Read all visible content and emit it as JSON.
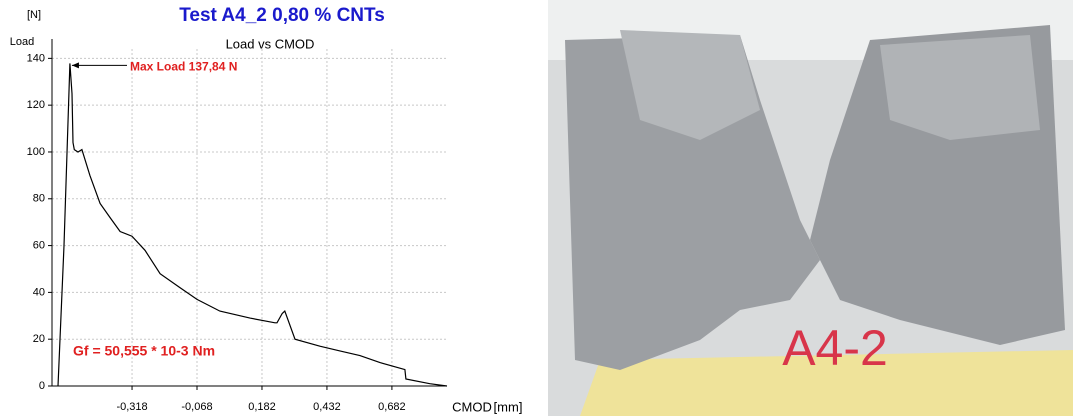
{
  "chart_data": {
    "type": "line",
    "title": "Test A4_2  0,80 % CNTs",
    "subtitle": "Load vs CMOD",
    "y_unit": "[N]",
    "y_label": "Load",
    "x_label": "CMOD",
    "x_unit": "[mm]",
    "annotations": {
      "max_load": "Max Load 137,84 N",
      "gf": "Gf = 50,555 * 10-3 Nm"
    },
    "color": "#000000",
    "title_color": "#1a1acc",
    "annotation_color": "#e02020",
    "grid": true,
    "x": [
      -0.603,
      -0.58,
      -0.557,
      -0.549,
      -0.545,
      -0.54,
      -0.526,
      -0.511,
      -0.48,
      -0.441,
      -0.403,
      -0.364,
      -0.318,
      -0.268,
      -0.21,
      -0.133,
      -0.068,
      0.02,
      0.136,
      0.232,
      0.24,
      0.26,
      0.27,
      0.309,
      0.405,
      0.482,
      0.559,
      0.636,
      0.732,
      0.736,
      0.828,
      0.894
    ],
    "values": [
      0,
      60,
      137.84,
      125,
      104,
      101,
      100,
      101,
      90,
      78,
      72,
      66,
      64,
      58,
      48,
      42,
      37,
      32,
      29,
      27,
      27,
      31,
      32,
      20,
      17,
      15,
      13,
      10,
      7,
      3,
      1,
      0
    ],
    "xlim": [
      -0.626,
      0.894
    ],
    "ylim": [
      0,
      144
    ],
    "xticks": [
      {
        "value": -0.318,
        "label": "-0,318"
      },
      {
        "value": -0.068,
        "label": "-0,068"
      },
      {
        "value": 0.182,
        "label": "0,182"
      },
      {
        "value": 0.432,
        "label": "0,432"
      },
      {
        "value": 0.682,
        "label": "0,682"
      }
    ],
    "yticks": [
      0,
      20,
      40,
      60,
      80,
      100,
      120,
      140
    ]
  },
  "photo": {
    "label": "A4-2"
  }
}
